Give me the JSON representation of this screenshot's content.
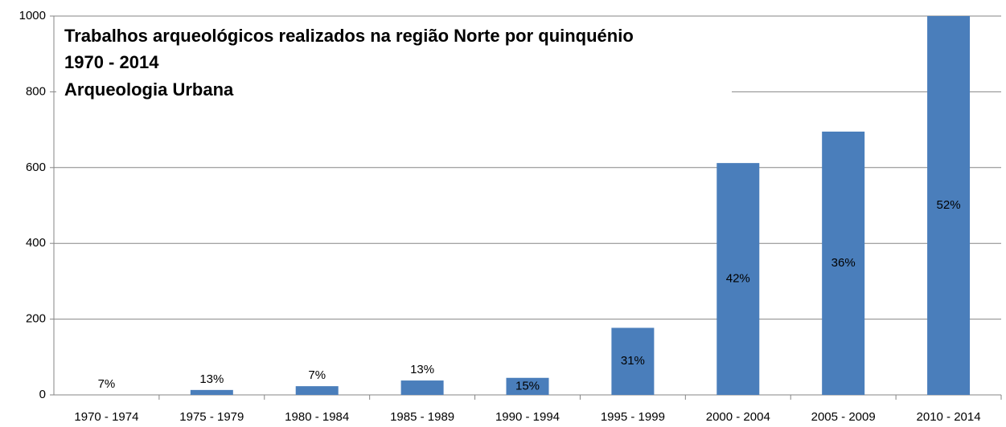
{
  "chart_data": {
    "type": "bar",
    "title": "Trabalhos arqueológicos realizados na região Norte por quinquénio",
    "subtitle": "1970 - 2014",
    "annotation": "Arqueologia Urbana",
    "categories": [
      "1970 - 1974",
      "1975 - 1979",
      "1980 - 1984",
      "1985 - 1989",
      "1990 - 1994",
      "1995 - 1999",
      "2000 - 2004",
      "2005 - 2009",
      "2010 - 2014"
    ],
    "values": [
      0,
      13,
      23,
      38,
      45,
      177,
      612,
      695,
      1000
    ],
    "bar_labels": [
      "7%",
      "13%",
      "7%",
      "13%",
      "15%",
      "31%",
      "42%",
      "36%",
      "52%"
    ],
    "color": "#4a7ebb",
    "ylim": [
      0,
      1000
    ],
    "yticks": [
      0,
      200,
      400,
      600,
      800,
      1000
    ],
    "grid": true
  }
}
